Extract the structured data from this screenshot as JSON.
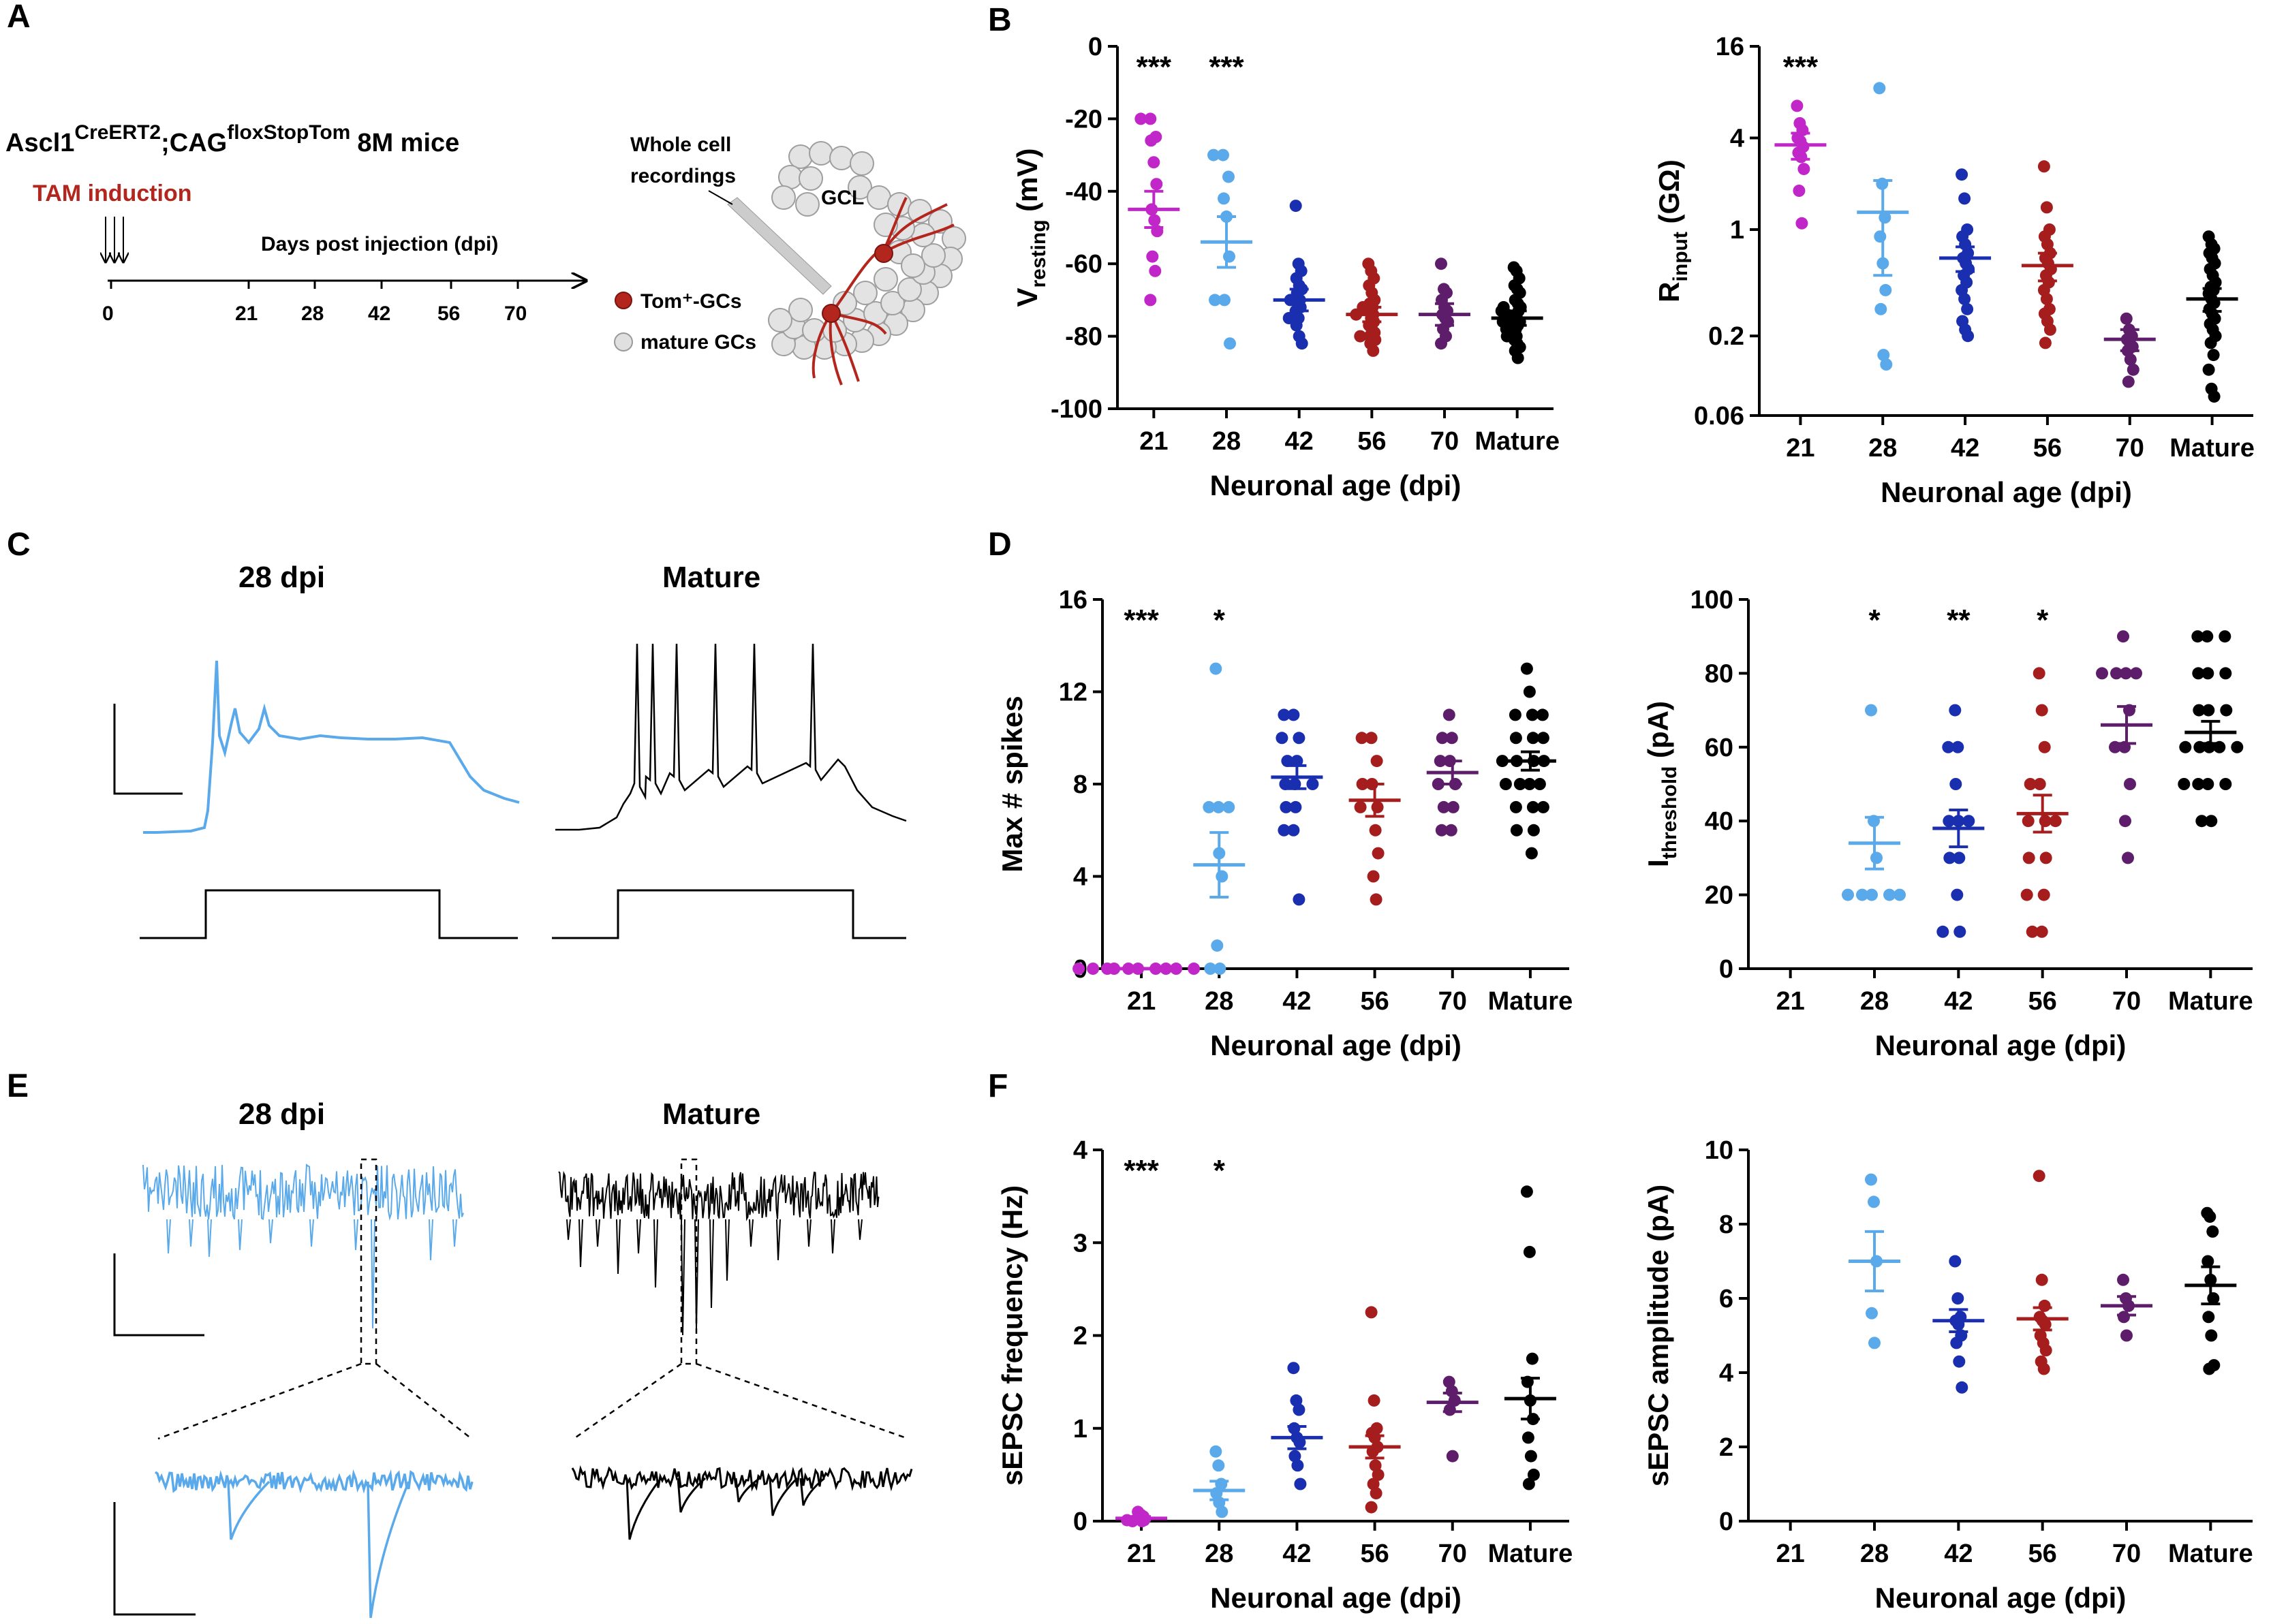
{
  "colors": {
    "d21": "#c127c8",
    "d28": "#5aa9ea",
    "d42": "#1a2fb0",
    "d56": "#a51d1d",
    "d70": "#5e1d6a",
    "mature": "#000000",
    "tam": "#b3261e",
    "tom_dot": "#b3261e",
    "mature_dot": "#d9d9d9"
  },
  "panelA": {
    "letter": "A",
    "mouse_main": "Ascl1",
    "mouse_sup1": "CreERT2",
    "mouse_semi": ";CAG",
    "mouse_sup2": "floxStopTom",
    "mouse_tail": "8M mice",
    "tam_label": "TAM induction",
    "timeline_label": "Days post injection (dpi)",
    "timeline_ticks": [
      "0",
      "21",
      "28",
      "42",
      "56",
      "70"
    ],
    "recording_label_1": "Whole cell",
    "recording_label_2": "recordings",
    "gcl_label": "GCL",
    "legend_tom": "Tom⁺-GCs",
    "legend_mature": "mature GCs"
  },
  "panelC": {
    "letter": "C",
    "title_left": "28 dpi",
    "title_right": "Mature"
  },
  "panelE": {
    "letter": "E",
    "title_left": "28 dpi",
    "title_right": "Mature"
  },
  "chart_data": [
    {
      "id": "B1",
      "panel_letter": "B",
      "type": "scatter",
      "ylabel_main": "V",
      "ylabel_sub": "resting",
      "ylabel_tail": " (mV)",
      "xlabel": "Neuronal age (dpi)",
      "categories": [
        "21",
        "28",
        "42",
        "56",
        "70",
        "Mature"
      ],
      "scale": "linear",
      "ylim": [
        -100,
        0
      ],
      "yticks": [
        0,
        -20,
        -40,
        -60,
        -80,
        -100
      ],
      "ytick_labels": [
        "0",
        "-20",
        "-40",
        "-60",
        "-80",
        "-100"
      ],
      "stars": [
        "***",
        "***",
        "",
        "",
        "",
        ""
      ],
      "means": [
        -45,
        -54,
        -70,
        -74,
        -74,
        -75
      ],
      "sems": [
        5,
        7,
        3,
        2,
        3,
        2
      ],
      "points": [
        [
          -20,
          -20,
          -25,
          -26,
          -32,
          -38,
          -45,
          -48,
          -51,
          -58,
          -62,
          -70
        ],
        [
          -30,
          -30,
          -36,
          -42,
          -47,
          -58,
          -70,
          -70,
          -82
        ],
        [
          -44,
          -60,
          -62,
          -64,
          -66,
          -67,
          -68,
          -70,
          -70,
          -71,
          -72,
          -73,
          -75,
          -75,
          -77,
          -80,
          -82
        ],
        [
          -60,
          -62,
          -64,
          -66,
          -68,
          -70,
          -71,
          -72,
          -72,
          -73,
          -74,
          -74,
          -75,
          -76,
          -77,
          -78,
          -79,
          -80,
          -80,
          -81,
          -82,
          -84
        ],
        [
          -60,
          -67,
          -68,
          -70,
          -72,
          -73,
          -74,
          -75,
          -76,
          -78,
          -80,
          -82
        ],
        [
          -61,
          -62,
          -64,
          -66,
          -67,
          -68,
          -70,
          -71,
          -72,
          -72,
          -73,
          -73,
          -74,
          -74,
          -75,
          -75,
          -76,
          -76,
          -77,
          -77,
          -78,
          -78,
          -79,
          -80,
          -80,
          -81,
          -82,
          -83,
          -84,
          -86
        ]
      ]
    },
    {
      "id": "B2",
      "panel_letter": "",
      "type": "scatter",
      "ylabel_main": "R",
      "ylabel_sub": "input",
      "ylabel_tail": " (GΩ)",
      "xlabel": "Neuronal age (dpi)",
      "categories": [
        "21",
        "28",
        "42",
        "56",
        "70",
        "Mature"
      ],
      "scale": "log",
      "ylim": [
        0.06,
        16
      ],
      "yticks": [
        16,
        4,
        1,
        0.2,
        0.06
      ],
      "ytick_labels": [
        "16",
        "4",
        "1",
        "0.2",
        "0.06"
      ],
      "stars": [
        "***",
        "",
        "",
        "",
        "",
        ""
      ],
      "means": [
        3.6,
        1.3,
        0.65,
        0.58,
        0.19,
        0.35
      ],
      "sems": [
        0.7,
        0.8,
        0.12,
        0.12,
        0.03,
        0.06
      ],
      "points": [
        [
          6.5,
          5.0,
          4.5,
          4.0,
          3.8,
          3.5,
          3.2,
          3.0,
          2.5,
          1.8,
          1.1
        ],
        [
          8.5,
          2.0,
          1.2,
          0.9,
          0.6,
          0.4,
          0.3,
          0.15,
          0.13
        ],
        [
          2.3,
          1.6,
          1.0,
          0.9,
          0.8,
          0.7,
          0.65,
          0.6,
          0.55,
          0.5,
          0.45,
          0.4,
          0.35,
          0.3,
          0.25,
          0.22,
          0.2
        ],
        [
          2.6,
          1.4,
          1.0,
          0.9,
          0.8,
          0.7,
          0.65,
          0.6,
          0.55,
          0.5,
          0.45,
          0.4,
          0.35,
          0.3,
          0.28,
          0.25,
          0.22,
          0.18
        ],
        [
          0.26,
          0.22,
          0.2,
          0.19,
          0.18,
          0.17,
          0.16,
          0.14,
          0.12,
          0.1
        ],
        [
          0.9,
          0.8,
          0.75,
          0.7,
          0.65,
          0.6,
          0.55,
          0.5,
          0.45,
          0.42,
          0.4,
          0.38,
          0.35,
          0.33,
          0.3,
          0.28,
          0.26,
          0.24,
          0.22,
          0.2,
          0.18,
          0.15,
          0.12,
          0.09,
          0.08
        ]
      ]
    },
    {
      "id": "D1",
      "panel_letter": "D",
      "type": "scatter",
      "ylabel_main": "Max # spikes",
      "ylabel_sub": "",
      "ylabel_tail": "",
      "xlabel": "Neuronal age (dpi)",
      "categories": [
        "21",
        "28",
        "42",
        "56",
        "70",
        "Mature"
      ],
      "scale": "linear",
      "ylim": [
        0,
        16
      ],
      "yticks": [
        16,
        12,
        8,
        4,
        0
      ],
      "ytick_labels": [
        "16",
        "12",
        "8",
        "4",
        "0"
      ],
      "stars": [
        "***",
        "*",
        "",
        "",
        "",
        ""
      ],
      "means": [
        0,
        4.5,
        8.3,
        7.3,
        8.5,
        9.0
      ],
      "sems": [
        0,
        1.4,
        0.5,
        0.7,
        0.5,
        0.4
      ],
      "points": [
        [
          0,
          0,
          0,
          0,
          0,
          0,
          0,
          0,
          0,
          0
        ],
        [
          13,
          7,
          7,
          7,
          5,
          4,
          1,
          0,
          0
        ],
        [
          11,
          11,
          10,
          10,
          9,
          9,
          8,
          8,
          8,
          7,
          7,
          6,
          6,
          3
        ],
        [
          10,
          10,
          9,
          8,
          8,
          7,
          7,
          6,
          5,
          4,
          3
        ],
        [
          11,
          10,
          10,
          9,
          9,
          8,
          8,
          7,
          7,
          6,
          6
        ],
        [
          13,
          12,
          11,
          11,
          11,
          10,
          10,
          10,
          9,
          9,
          9,
          9,
          8,
          8,
          8,
          8,
          7,
          7,
          7,
          6,
          6,
          5
        ]
      ]
    },
    {
      "id": "D2",
      "panel_letter": "",
      "type": "scatter",
      "ylabel_main": "I",
      "ylabel_sub": "threshold",
      "ylabel_tail": " (pA)",
      "xlabel": "Neuronal age (dpi)",
      "categories": [
        "21",
        "28",
        "42",
        "56",
        "70",
        "Mature"
      ],
      "scale": "linear",
      "ylim": [
        0,
        100
      ],
      "yticks": [
        100,
        80,
        60,
        40,
        20,
        0
      ],
      "ytick_labels": [
        "100",
        "80",
        "60",
        "40",
        "20",
        "0"
      ],
      "stars": [
        "",
        "*",
        "**",
        "*",
        "",
        ""
      ],
      "means": [
        null,
        34,
        38,
        42,
        66,
        64
      ],
      "sems": [
        null,
        7,
        5,
        5,
        5,
        3
      ],
      "points": [
        [],
        [
          70,
          40,
          30,
          20,
          20,
          20,
          20,
          20
        ],
        [
          70,
          60,
          60,
          50,
          40,
          40,
          40,
          30,
          30,
          20,
          10,
          10
        ],
        [
          80,
          70,
          60,
          50,
          50,
          40,
          40,
          40,
          30,
          30,
          20,
          20,
          10,
          10
        ],
        [
          90,
          80,
          80,
          80,
          80,
          70,
          60,
          60,
          50,
          40,
          30
        ],
        [
          90,
          90,
          90,
          80,
          80,
          80,
          70,
          70,
          70,
          60,
          60,
          60,
          60,
          60,
          50,
          50,
          50,
          50,
          40,
          40
        ]
      ]
    },
    {
      "id": "F1",
      "panel_letter": "F",
      "type": "scatter",
      "ylabel_main": "sEPSC frequency (Hz)",
      "ylabel_sub": "",
      "ylabel_tail": "",
      "xlabel": "Neuronal age (dpi)",
      "categories": [
        "21",
        "28",
        "42",
        "56",
        "70",
        "Mature"
      ],
      "scale": "linear",
      "ylim": [
        0,
        4
      ],
      "yticks": [
        4,
        3,
        2,
        1,
        0
      ],
      "ytick_labels": [
        "4",
        "3",
        "2",
        "1",
        "0"
      ],
      "stars": [
        "***",
        "*",
        "",
        "",
        "",
        ""
      ],
      "means": [
        0.03,
        0.33,
        0.9,
        0.8,
        1.28,
        1.32
      ],
      "sems": [
        0.02,
        0.1,
        0.12,
        0.12,
        0.1,
        0.22
      ],
      "points": [
        [
          0.1,
          0.07,
          0.05,
          0.03,
          0.02,
          0.01,
          0.01,
          0.0,
          0.0
        ],
        [
          0.75,
          0.6,
          0.4,
          0.3,
          0.2,
          0.1
        ],
        [
          1.65,
          1.3,
          1.2,
          1.0,
          0.9,
          0.85,
          0.7,
          0.6,
          0.4
        ],
        [
          2.25,
          1.3,
          1.0,
          0.95,
          0.9,
          0.8,
          0.75,
          0.6,
          0.5,
          0.4,
          0.3,
          0.15
        ],
        [
          1.5,
          1.4,
          1.3,
          1.2,
          0.7
        ],
        [
          3.55,
          2.9,
          1.75,
          1.5,
          1.3,
          1.1,
          0.9,
          0.7,
          0.5,
          0.4
        ]
      ]
    },
    {
      "id": "F2",
      "panel_letter": "",
      "type": "scatter",
      "ylabel_main": "sEPSC amplitude (pA)",
      "ylabel_sub": "",
      "ylabel_tail": "",
      "xlabel": "Neuronal age (dpi)",
      "categories": [
        "21",
        "28",
        "42",
        "56",
        "70",
        "Mature"
      ],
      "scale": "linear",
      "ylim": [
        0,
        10
      ],
      "yticks": [
        10,
        8,
        6,
        4,
        2,
        0
      ],
      "ytick_labels": [
        "10",
        "8",
        "6",
        "4",
        "2",
        "0"
      ],
      "stars": [
        "",
        "",
        "",
        "",
        "",
        ""
      ],
      "means": [
        null,
        7.0,
        5.4,
        5.45,
        5.8,
        6.35
      ],
      "sems": [
        null,
        0.8,
        0.3,
        0.3,
        0.25,
        0.5
      ],
      "points": [
        [],
        [
          9.2,
          8.6,
          7.0,
          5.6,
          4.8
        ],
        [
          7.0,
          6.0,
          5.5,
          5.4,
          5.3,
          5.0,
          4.8,
          4.3,
          3.6
        ],
        [
          9.3,
          6.5,
          5.8,
          5.5,
          5.4,
          5.3,
          5.0,
          4.8,
          4.6,
          4.3,
          4.1
        ],
        [
          6.5,
          6.0,
          5.8,
          5.5,
          5.0
        ],
        [
          8.3,
          8.2,
          7.8,
          7.0,
          6.5,
          6.0,
          5.5,
          5.0,
          4.2,
          4.1
        ]
      ]
    }
  ]
}
